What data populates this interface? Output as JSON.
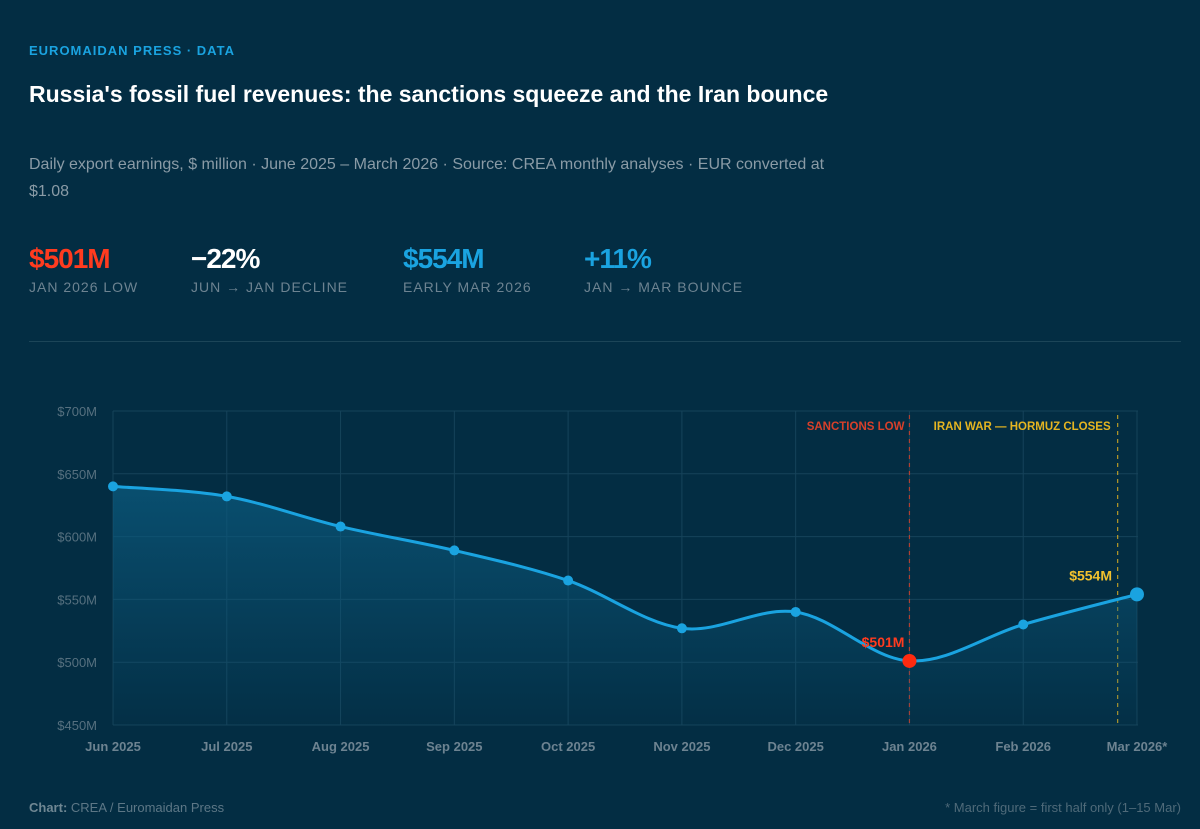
{
  "kicker": "EUROMAIDAN PRESS · DATA",
  "title": "Russia's fossil fuel revenues: the sanctions squeeze and the Iran bounce",
  "subtitle": "Daily export earnings, $ million · June 2025 – March 2026 · Source: CREA monthly analyses · EUR converted at $1.08",
  "stats": [
    {
      "value": "$501M",
      "label": "JAN 2026 LOW",
      "color": "#ff3b1f"
    },
    {
      "value": "−22%",
      "label": "JUN → JAN DECLINE",
      "color": "#ffffff"
    },
    {
      "value": "$554M",
      "label": "EARLY MAR 2026",
      "color": "#1aa3e0"
    },
    {
      "value": "+11%",
      "label": "JAN → MAR BOUNCE",
      "color": "#1aa3e0"
    }
  ],
  "footer": {
    "chart_label": "Chart:",
    "chart_credit": "CREA / Euromaidan Press",
    "note": "* March figure = first half only (1–15 Mar)"
  },
  "chart_data": {
    "type": "line",
    "categories": [
      "Jun 2025",
      "Jul 2025",
      "Aug 2025",
      "Sep 2025",
      "Oct 2025",
      "Nov 2025",
      "Dec 2025",
      "Jan 2026",
      "Feb 2026",
      "Mar 2026*"
    ],
    "values": [
      640,
      632,
      608,
      589,
      565,
      527,
      540,
      501,
      530,
      554
    ],
    "y_ticks": [
      "$450M",
      "$500M",
      "$550M",
      "$600M",
      "$650M",
      "$700M"
    ],
    "ylim": [
      450,
      700
    ],
    "grid": true,
    "line_color": "#1aa3e0",
    "area_fill": true,
    "annotations": [
      {
        "label": "SANCTIONS LOW",
        "at": "Jan 2026",
        "color": "#d8402a"
      },
      {
        "label": "IRAN WAR — HORMUZ CLOSES",
        "at": "late Feb 2026",
        "color": "#e5b521"
      }
    ],
    "point_labels": [
      {
        "category": "Jan 2026",
        "text": "$501M",
        "color": "#ff3b1f"
      },
      {
        "category": "Mar 2026*",
        "text": "$554M",
        "color": "#f2c12e"
      }
    ]
  }
}
